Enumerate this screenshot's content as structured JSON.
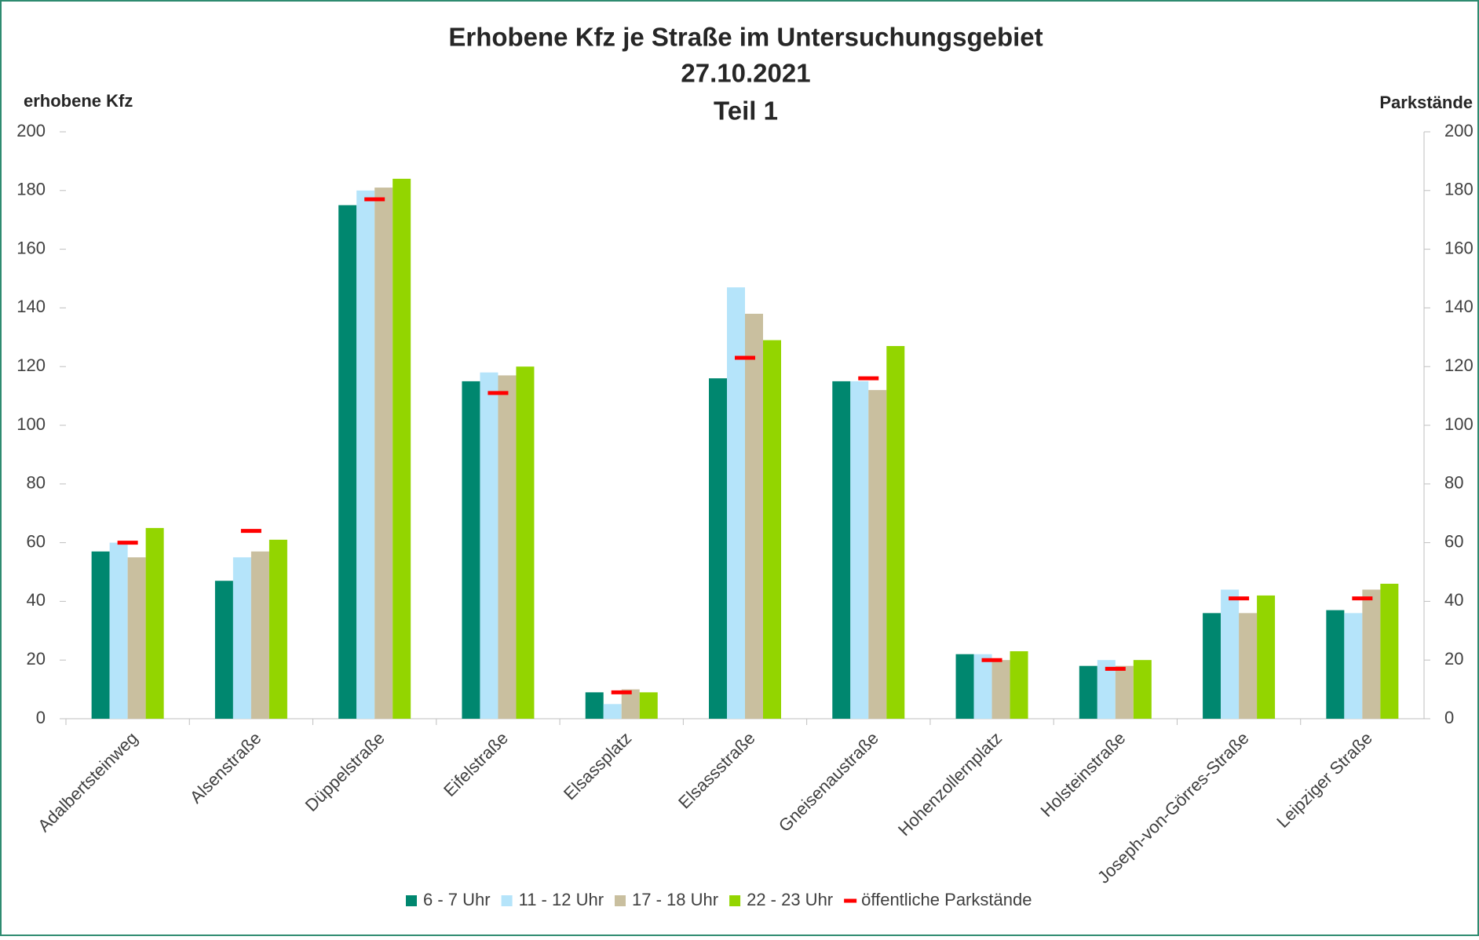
{
  "chart_data": {
    "type": "bar",
    "title": "Erhobene Kfz je Straße im Untersuchungsgebiet",
    "subtitle": [
      "27.10.2021",
      "Teil 1"
    ],
    "y_label": "erhobene Kfz",
    "y2_label": "Parkstände",
    "categories": [
      "Adalbertsteinweg",
      "Alsenstraße",
      "Düppelstraße",
      "Eifelstraße",
      "Elsassplatz",
      "Elsassstraße",
      "Gneisenaustraße",
      "Hohenzollernplatz",
      "Holsteinstraße",
      "Joseph-von-Görres-Straße",
      "Leipziger Straße"
    ],
    "series": [
      {
        "name": "6 - 7 Uhr",
        "color": "#00876f",
        "values": [
          57,
          47,
          175,
          115,
          9,
          116,
          115,
          22,
          18,
          36,
          37
        ]
      },
      {
        "name": "11 - 12 Uhr",
        "color": "#b5e4fa",
        "values": [
          60,
          55,
          180,
          118,
          5,
          147,
          115,
          22,
          20,
          44,
          36
        ]
      },
      {
        "name": "17 - 18 Uhr",
        "color": "#c9bf9f",
        "values": [
          55,
          57,
          181,
          117,
          10,
          138,
          112,
          20,
          18,
          36,
          44
        ]
      },
      {
        "name": "22 - 23 Uhr",
        "color": "#93d500",
        "values": [
          65,
          61,
          184,
          120,
          9,
          129,
          127,
          23,
          20,
          42,
          46
        ]
      },
      {
        "name": "öffentliche Parkstände",
        "color": "#ff0000",
        "type": "dash",
        "axis": "y2",
        "values": [
          60,
          64,
          177,
          111,
          9,
          123,
          116,
          20,
          17,
          41,
          41
        ]
      }
    ],
    "ylim": [
      0,
      200
    ],
    "yticks": [
      0,
      20,
      40,
      60,
      80,
      100,
      120,
      140,
      160,
      180,
      200
    ],
    "y2lim": [
      0,
      200
    ],
    "y2ticks": [
      0,
      20,
      40,
      60,
      80,
      100,
      120,
      140,
      160,
      180,
      200
    ],
    "legend": "bottom"
  }
}
